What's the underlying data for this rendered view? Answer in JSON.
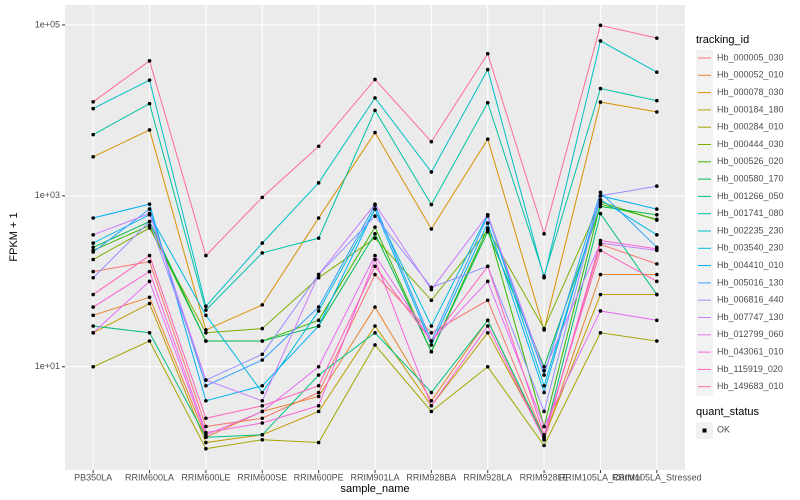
{
  "chart_data": {
    "type": "line",
    "log_y": true,
    "grid": true,
    "x_label": "sample_name",
    "y_label": "FPKM + 1",
    "legend_title": "tracking_id",
    "legend_position": "right",
    "shape_legend": {
      "title": "quant_status",
      "labels": [
        "OK"
      ]
    },
    "point_color": "#000000",
    "ylim": [
      0.62,
      171000
    ],
    "yticks": [
      {
        "value": 10,
        "label": "1e+01"
      },
      {
        "value": 1000,
        "label": "1e+03"
      },
      {
        "value": 100000,
        "label": "1e+05"
      }
    ],
    "categories": [
      "PB350LA",
      "RRIM600LA",
      "RRIM600LE",
      "RRIM600SE",
      "RRIM600PE",
      "RRIM901LA",
      "RRIM928BA",
      "RRIM928LA",
      "RRIM928LE",
      "RRIM105LA_Control",
      "RRIM105LA_Stressed"
    ],
    "series": [
      {
        "name": "Hb_000005_030",
        "color": "#F8766D",
        "values": [
          130,
          170,
          2,
          2.5,
          5,
          120,
          25,
          60,
          1.5,
          270,
          160
        ]
      },
      {
        "name": "Hb_000052_010",
        "color": "#EA8331",
        "values": [
          40,
          65,
          1.5,
          3,
          4.5,
          50,
          4,
          35,
          1.4,
          120,
          120
        ]
      },
      {
        "name": "Hb_000078_030",
        "color": "#D89000",
        "values": [
          2860,
          5900,
          27,
          53,
          550,
          5500,
          410,
          4600,
          27,
          12500,
          9600
        ]
      },
      {
        "name": "Hb_000184_180",
        "color": "#C09B00",
        "values": [
          25,
          55,
          1.3,
          1.6,
          3,
          30,
          3.5,
          25,
          1.5,
          70,
          70
        ]
      },
      {
        "name": "Hb_000284_010",
        "color": "#A3A500",
        "values": [
          10,
          20,
          1.1,
          1.4,
          1.3,
          18,
          3,
          10,
          1.2,
          25,
          20
        ]
      },
      {
        "name": "Hb_000444_030",
        "color": "#7CAE00",
        "values": [
          180,
          420,
          25,
          28,
          110,
          320,
          60,
          400,
          28,
          850,
          520
        ]
      },
      {
        "name": "Hb_000526_020",
        "color": "#39B600",
        "values": [
          230,
          450,
          20,
          20,
          35,
          430,
          15,
          420,
          2,
          800,
          530
        ]
      },
      {
        "name": "Hb_000580_170",
        "color": "#00BB4E",
        "values": [
          250,
          500,
          20,
          20,
          30,
          360,
          15,
          380,
          10,
          750,
          600
        ]
      },
      {
        "name": "Hb_001266_050",
        "color": "#00BF7D",
        "values": [
          30,
          25,
          1.5,
          1.6,
          8,
          25,
          5,
          35,
          1.5,
          620,
          70
        ]
      },
      {
        "name": "Hb_001741_080",
        "color": "#00C1A3",
        "values": [
          5200,
          12000,
          46,
          215,
          320,
          10000,
          790,
          12300,
          115,
          18000,
          13000
        ]
      },
      {
        "name": "Hb_002235_230",
        "color": "#00BFC4",
        "values": [
          10500,
          22600,
          51,
          280,
          1420,
          14000,
          1900,
          30000,
          110,
          65000,
          28000
        ]
      },
      {
        "name": "Hb_003540_230",
        "color": "#00BAE0",
        "values": [
          280,
          600,
          40,
          5,
          45,
          700,
          30,
          600,
          6,
          900,
          350
        ]
      },
      {
        "name": "Hb_004410_010",
        "color": "#00B0F6",
        "values": [
          550,
          800,
          4,
          6,
          30,
          700,
          18,
          480,
          5,
          1000,
          700
        ]
      },
      {
        "name": "Hb_005016_130",
        "color": "#35A2FF",
        "values": [
          220,
          700,
          6,
          12,
          50,
          780,
          20,
          580,
          8,
          1100,
          250
        ]
      },
      {
        "name": "Hb_006816_440",
        "color": "#9590FF",
        "values": [
          110,
          500,
          7,
          14,
          120,
          580,
          85,
          150,
          3,
          1000,
          1300
        ]
      },
      {
        "name": "Hb_007747_130",
        "color": "#C77CFF",
        "values": [
          350,
          620,
          7,
          4,
          120,
          800,
          80,
          600,
          9,
          280,
          230
        ]
      },
      {
        "name": "Hb_012799_060",
        "color": "#E76BF3",
        "values": [
          25,
          100,
          1.6,
          3,
          10,
          200,
          20,
          100,
          2,
          45,
          35
        ]
      },
      {
        "name": "Hb_043061_010",
        "color": "#FA62DB",
        "values": [
          50,
          130,
          1.7,
          2.2,
          3.5,
          180,
          3.5,
          30,
          1.4,
          300,
          240
        ]
      },
      {
        "name": "Hb_115919_020",
        "color": "#FF62BC",
        "values": [
          70,
          200,
          2.5,
          3.5,
          6,
          150,
          20,
          150,
          1.6,
          230,
          100
        ]
      },
      {
        "name": "Hb_149683_010",
        "color": "#FF6C91",
        "values": [
          12600,
          38000,
          200,
          960,
          3800,
          23000,
          4300,
          46000,
          360,
          99000,
          70000
        ]
      }
    ]
  }
}
